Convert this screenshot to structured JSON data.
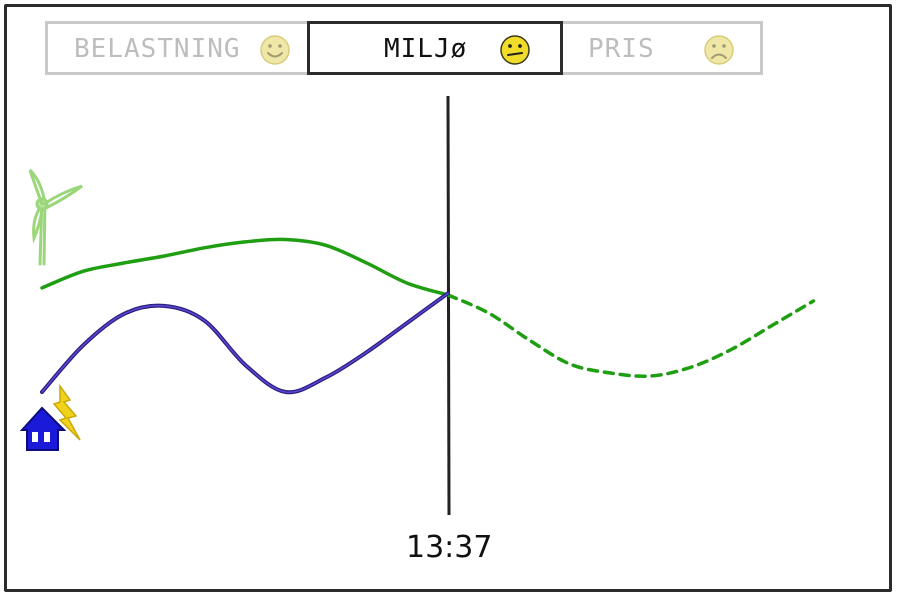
{
  "tabs": [
    {
      "label": "BELASTNING",
      "mood": "happy",
      "active": false
    },
    {
      "label": "MILJø",
      "mood": "neutral",
      "active": true
    },
    {
      "label": "PRIS",
      "mood": "sad",
      "active": false
    }
  ],
  "time": {
    "label": "13:37"
  },
  "icons": {
    "renewable": "wind-turbine-icon",
    "consumption": "house-lightning-icon"
  },
  "colors": {
    "renewable_line": "#1f9e12",
    "consumption_line": "#2b1f7a",
    "face_active": "#f2dc2a",
    "face_inactive": "#efe7a8",
    "house": "#1a1ad8",
    "bolt": "#f0d21a",
    "turbine": "#9bd67a"
  },
  "chart_data": {
    "type": "line",
    "title": "",
    "xlabel": "",
    "ylabel": "",
    "current_marker": "13:37",
    "series": [
      {
        "name": "",
        "style": "solid",
        "role": "renewable",
        "x": [
          0,
          0.1,
          0.2,
          0.3,
          0.4,
          0.5,
          0.6,
          0.7,
          0.8,
          0.9,
          1.0
        ],
        "y": [
          0.36,
          0.5,
          0.57,
          0.63,
          0.7,
          0.75,
          0.77,
          0.72,
          0.57,
          0.4,
          0.3
        ]
      },
      {
        "name": "",
        "style": "dashed",
        "role": "renewable-forecast",
        "x": [
          1.0,
          1.1,
          1.2,
          1.3,
          1.4,
          1.5,
          1.6,
          1.7,
          1.8,
          1.9
        ],
        "y": [
          0.3,
          0.24,
          0.15,
          0.07,
          0.04,
          0.03,
          0.06,
          0.12,
          0.2,
          0.28
        ]
      },
      {
        "name": "",
        "style": "solid",
        "role": "consumption",
        "x": [
          0,
          0.1,
          0.2,
          0.3,
          0.4,
          0.5,
          0.6,
          0.7,
          0.8,
          0.9,
          1.0
        ],
        "y": [
          0.0,
          0.22,
          0.37,
          0.41,
          0.34,
          0.13,
          0.0,
          0.07,
          0.19,
          0.33,
          0.47
        ]
      }
    ]
  }
}
